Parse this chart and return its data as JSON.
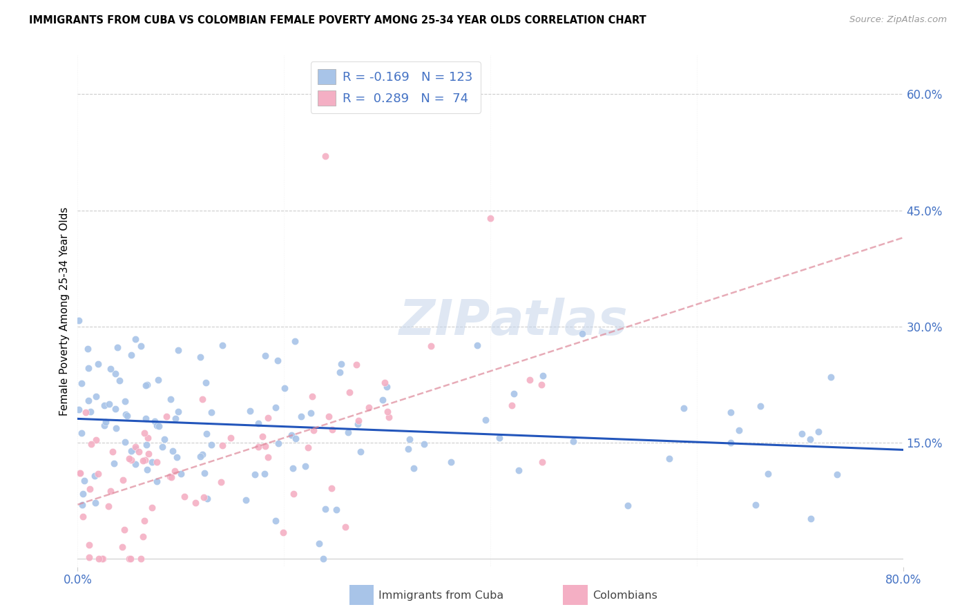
{
  "title": "IMMIGRANTS FROM CUBA VS COLOMBIAN FEMALE POVERTY AMONG 25-34 YEAR OLDS CORRELATION CHART",
  "source": "Source: ZipAtlas.com",
  "ylabel": "Female Poverty Among 25-34 Year Olds",
  "ytick_values": [
    0.0,
    0.15,
    0.3,
    0.45,
    0.6
  ],
  "ytick_labels": [
    "",
    "15.0%",
    "30.0%",
    "45.0%",
    "60.0%"
  ],
  "xlim": [
    0.0,
    0.8
  ],
  "ylim": [
    -0.01,
    0.65
  ],
  "cuba_color": "#a8c4e8",
  "colombia_color": "#f4afc4",
  "cuba_line_color": "#2255bb",
  "colombia_line_color": "#dd8899",
  "text_color": "#4472c4",
  "grid_color": "#cccccc",
  "watermark": "ZIPatlas",
  "legend_r_cuba": "-0.169",
  "legend_n_cuba": "123",
  "legend_r_colombia": "0.289",
  "legend_n_colombia": "74",
  "seed": 1234
}
